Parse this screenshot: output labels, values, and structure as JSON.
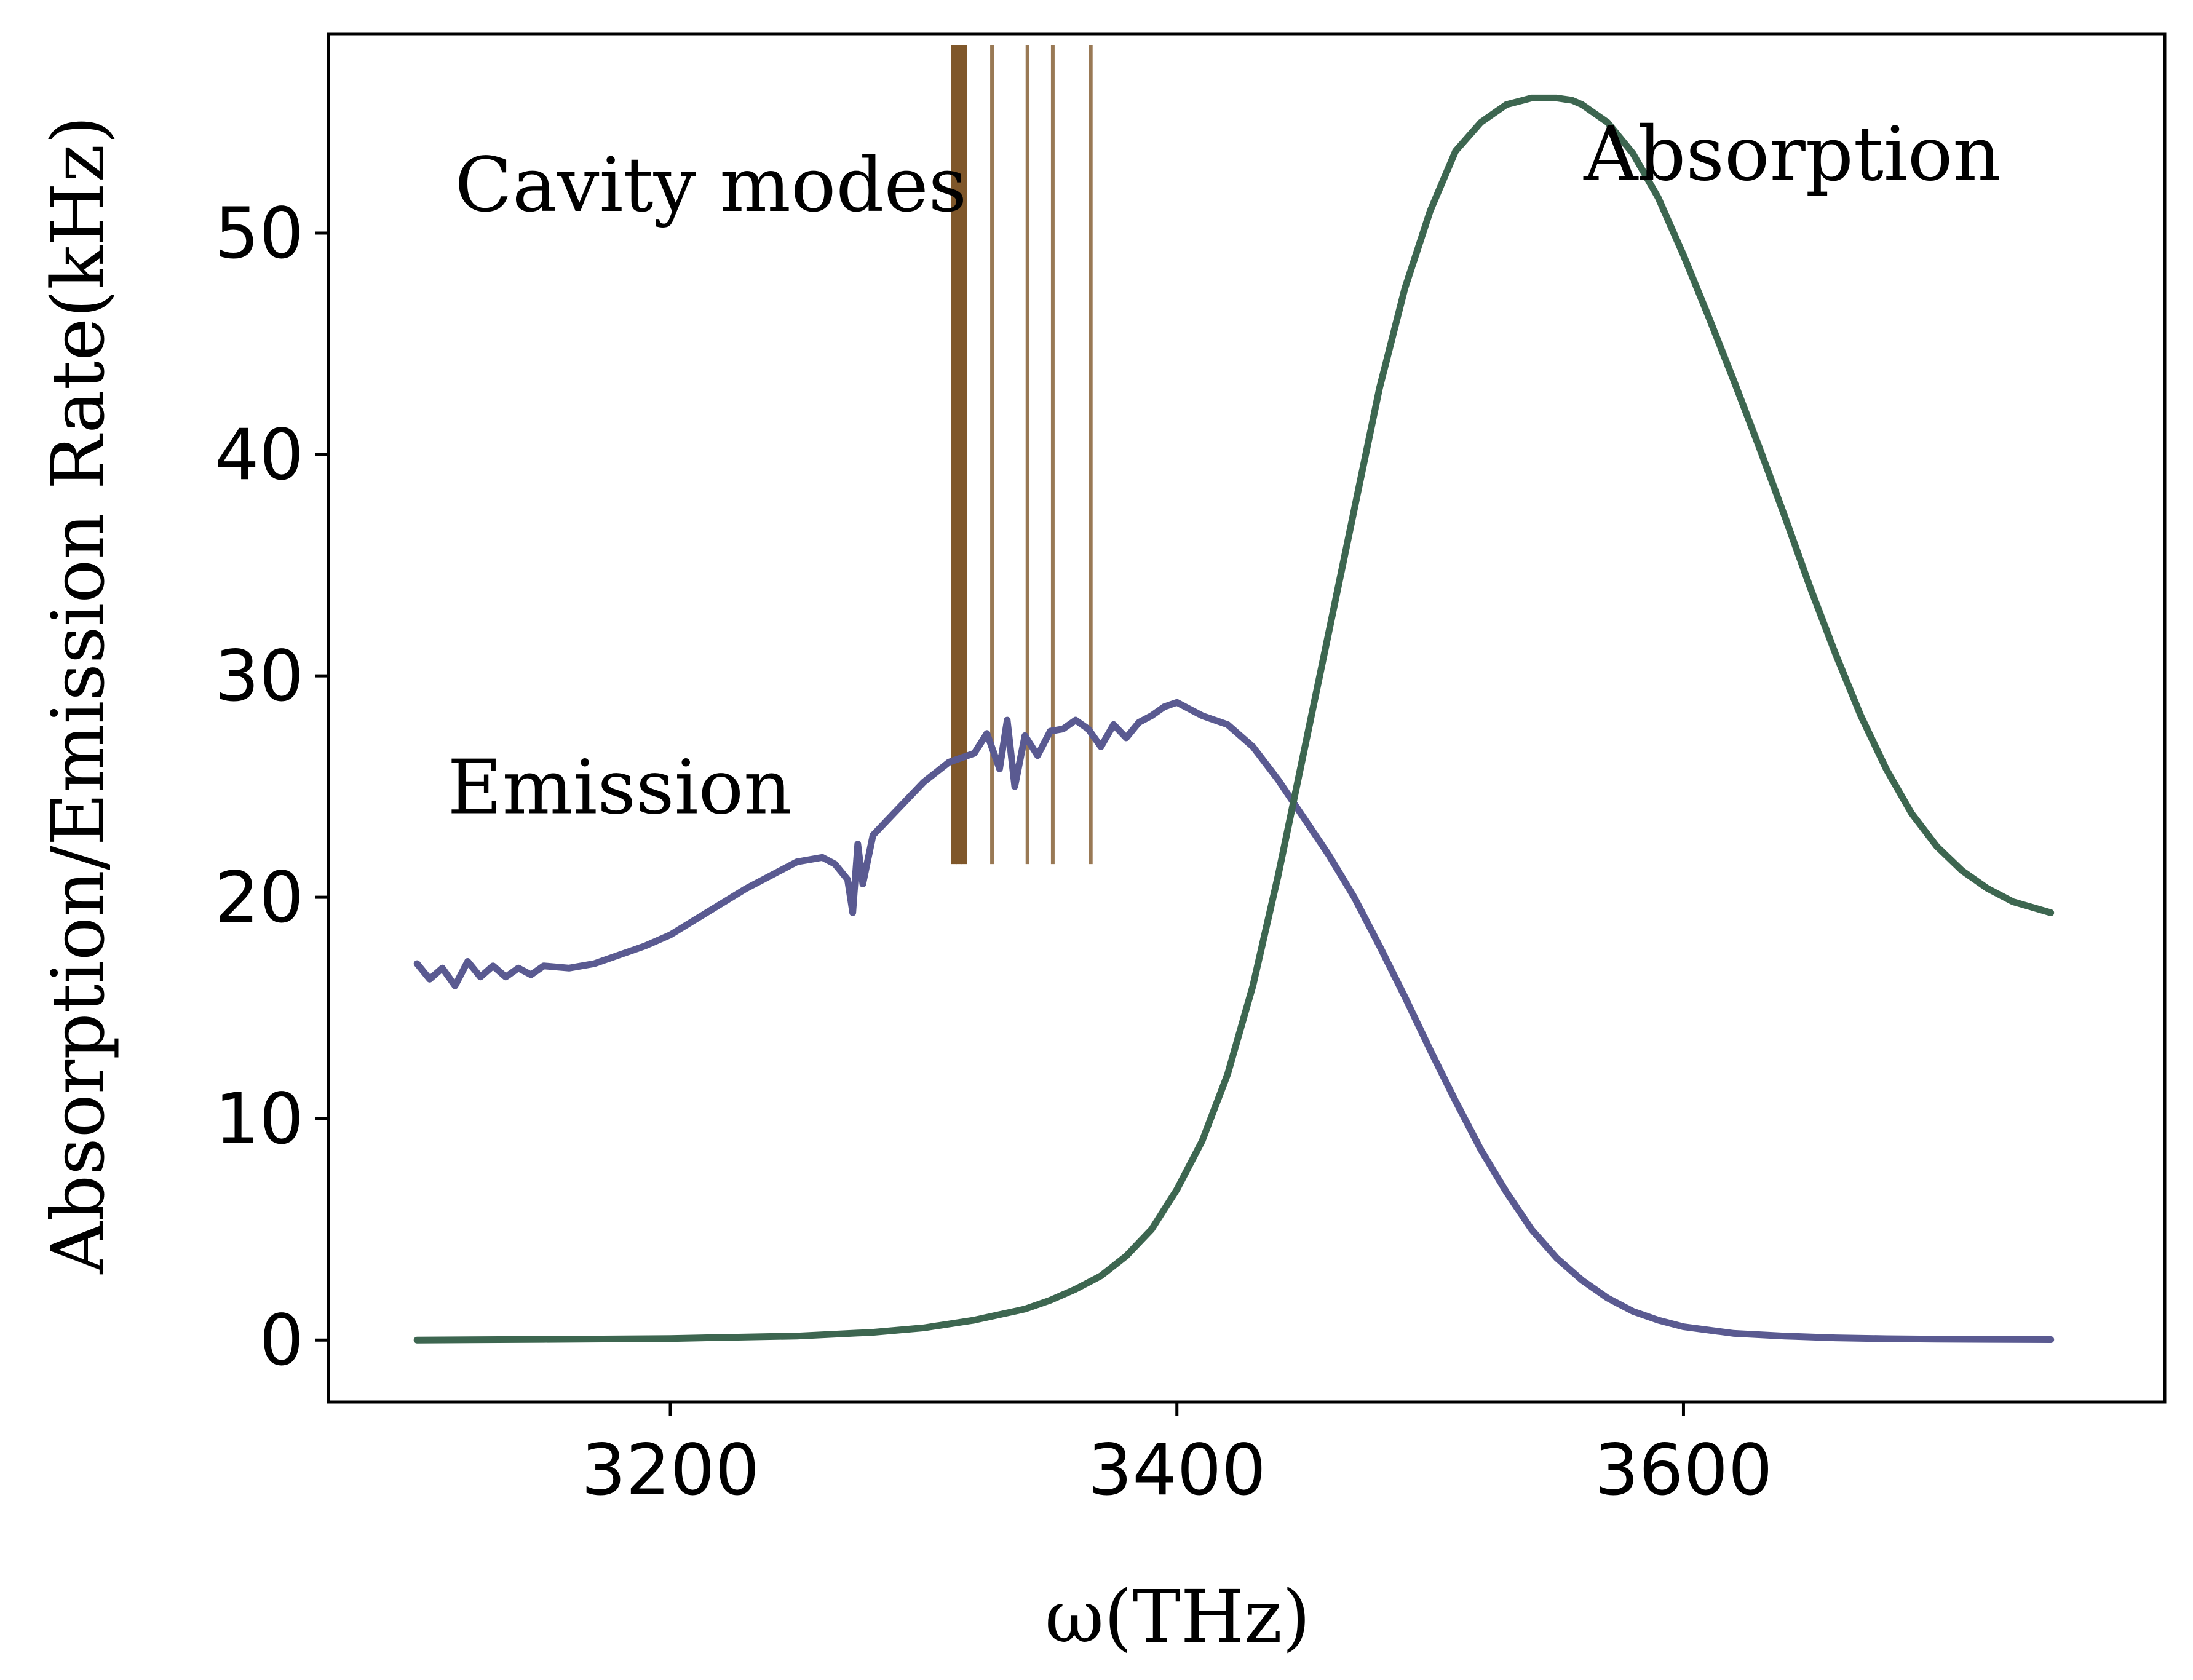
{
  "chart_data": {
    "type": "line",
    "title": "",
    "xlabel": "ω(THz)",
    "ylabel": "Absorption/Emission Rate(kHz)",
    "xlim": [
      3065,
      3790
    ],
    "ylim": [
      -2.8,
      59
    ],
    "grid": false,
    "x_ticks": [
      {
        "value": 3200,
        "label": "3200"
      },
      {
        "value": 3400,
        "label": "3400"
      },
      {
        "value": 3600,
        "label": "3600"
      }
    ],
    "y_ticks": [
      {
        "value": 0,
        "label": "0"
      },
      {
        "value": 10,
        "label": "10"
      },
      {
        "value": 20,
        "label": "20"
      },
      {
        "value": 30,
        "label": "30"
      },
      {
        "value": 40,
        "label": "40"
      },
      {
        "value": 50,
        "label": "50"
      }
    ],
    "series": [
      {
        "name": "Emission",
        "color": "#5a5a91",
        "x": [
          3100,
          3105,
          3110,
          3115,
          3120,
          3125,
          3130,
          3135,
          3140,
          3145,
          3150,
          3160,
          3170,
          3180,
          3190,
          3200,
          3210,
          3220,
          3230,
          3240,
          3250,
          3260,
          3265,
          3270,
          3272,
          3274,
          3276,
          3280,
          3290,
          3300,
          3310,
          3320,
          3325,
          3330,
          3333,
          3336,
          3340,
          3345,
          3350,
          3355,
          3360,
          3365,
          3370,
          3375,
          3380,
          3385,
          3390,
          3395,
          3400,
          3405,
          3410,
          3420,
          3430,
          3440,
          3450,
          3460,
          3470,
          3480,
          3490,
          3500,
          3510,
          3520,
          3530,
          3540,
          3550,
          3560,
          3570,
          3580,
          3590,
          3600,
          3620,
          3640,
          3660,
          3680,
          3700,
          3720,
          3745
        ],
        "y": [
          17.0,
          16.3,
          16.8,
          16.0,
          17.1,
          16.4,
          16.9,
          16.4,
          16.8,
          16.5,
          16.9,
          16.8,
          17.0,
          17.4,
          17.8,
          18.3,
          19.0,
          19.7,
          20.4,
          21.0,
          21.6,
          21.8,
          21.5,
          20.8,
          19.3,
          22.4,
          20.6,
          22.8,
          24.0,
          25.2,
          26.1,
          26.5,
          27.4,
          25.8,
          28.0,
          25.0,
          27.3,
          26.4,
          27.5,
          27.6,
          28.0,
          27.6,
          26.8,
          27.8,
          27.2,
          27.9,
          28.2,
          28.6,
          28.8,
          28.5,
          28.2,
          27.8,
          26.8,
          25.3,
          23.6,
          21.9,
          20.0,
          17.8,
          15.5,
          13.1,
          10.8,
          8.6,
          6.7,
          5.0,
          3.7,
          2.7,
          1.9,
          1.3,
          0.9,
          0.6,
          0.3,
          0.18,
          0.1,
          0.06,
          0.04,
          0.03,
          0.02
        ]
      },
      {
        "name": "Absorption",
        "color": "#3d6650",
        "x": [
          3100,
          3150,
          3200,
          3250,
          3280,
          3300,
          3320,
          3340,
          3350,
          3360,
          3370,
          3380,
          3390,
          3400,
          3410,
          3420,
          3430,
          3440,
          3450,
          3460,
          3470,
          3480,
          3490,
          3500,
          3510,
          3520,
          3530,
          3540,
          3550,
          3556,
          3560,
          3570,
          3580,
          3590,
          3600,
          3610,
          3620,
          3630,
          3640,
          3650,
          3660,
          3670,
          3680,
          3690,
          3700,
          3710,
          3720,
          3730,
          3745
        ],
        "y": [
          0.0,
          0.03,
          0.07,
          0.18,
          0.35,
          0.55,
          0.9,
          1.4,
          1.8,
          2.3,
          2.9,
          3.8,
          5.0,
          6.8,
          9.0,
          12.0,
          16.0,
          21.0,
          26.5,
          32.0,
          37.5,
          43.0,
          47.5,
          51.0,
          53.7,
          55.0,
          55.8,
          56.1,
          56.1,
          56.0,
          55.8,
          55.0,
          53.6,
          51.6,
          49.0,
          46.2,
          43.3,
          40.3,
          37.2,
          34.0,
          31.0,
          28.2,
          25.8,
          23.8,
          22.3,
          21.2,
          20.4,
          19.8,
          19.3
        ]
      }
    ],
    "cavity_modes": {
      "label": "Cavity modes",
      "color": "#7f572a",
      "x": [
        3312,
        3314,
        3316,
        3327,
        3341,
        3351,
        3366
      ],
      "y_range": [
        21.5,
        58.5
      ]
    },
    "annotations": [
      {
        "text": "Cavity modes",
        "x": 3216,
        "y": 51
      },
      {
        "text": "Emission",
        "x": 3180,
        "y": 23.8
      },
      {
        "text": "Absorption",
        "x": 3643,
        "y": 52.4
      }
    ]
  }
}
